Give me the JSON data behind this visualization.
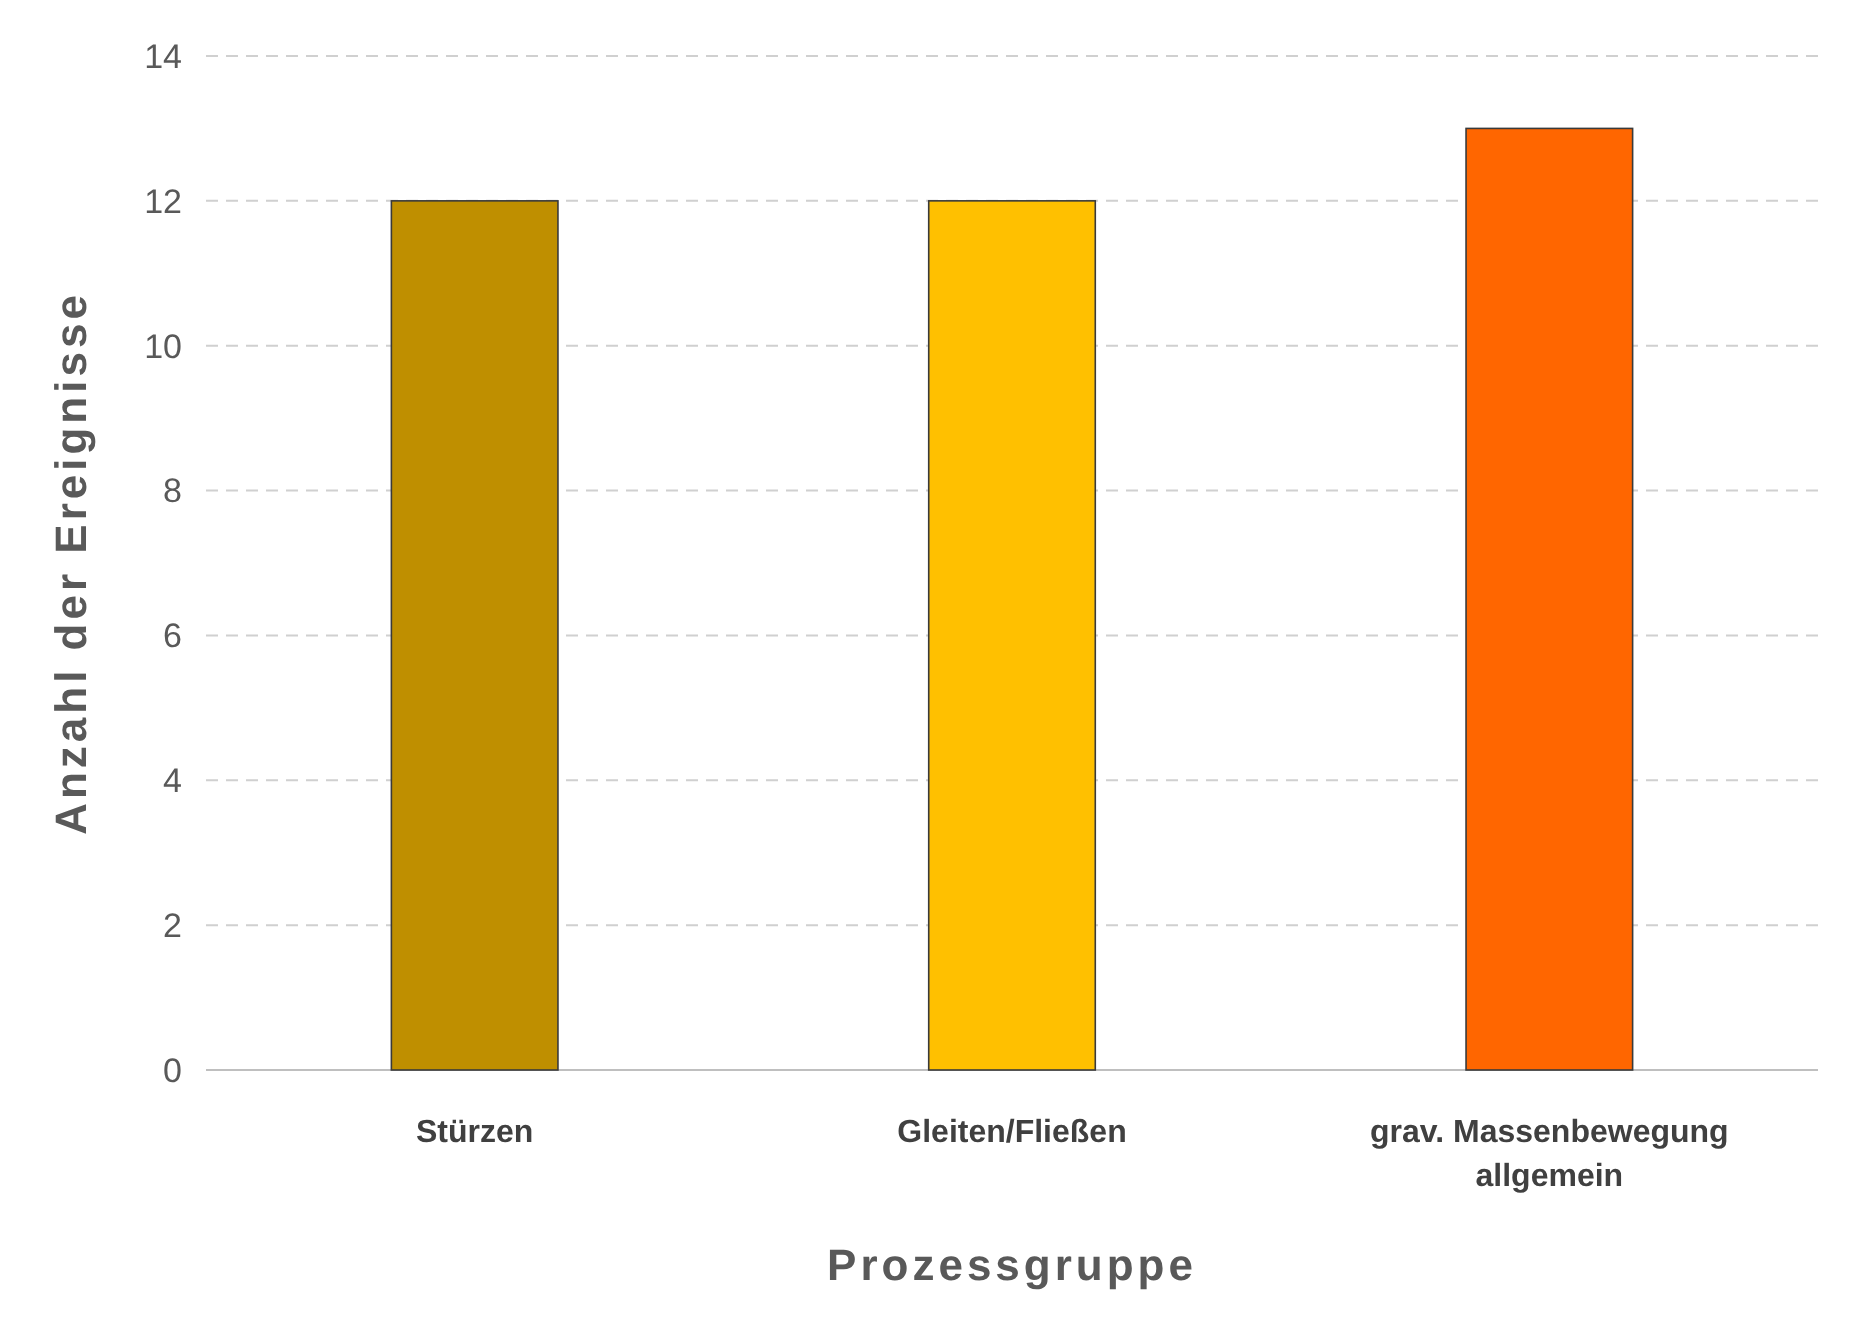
{
  "chart_data": {
    "type": "bar",
    "xlabel": "Prozessgruppe",
    "ylabel": "Anzahl der Ereignisse",
    "categories": [
      "Stürzen",
      "Gleiten/Fließen",
      "grav. Massenbewegung allgemein"
    ],
    "values": [
      12,
      12,
      13
    ],
    "colors": [
      "#bf8f00",
      "#ffc000",
      "#ff6600"
    ],
    "ylim": [
      0,
      14
    ],
    "yticks": [
      0,
      2,
      4,
      6,
      8,
      10,
      12,
      14
    ],
    "grid": "y",
    "line_style": "dashed"
  }
}
